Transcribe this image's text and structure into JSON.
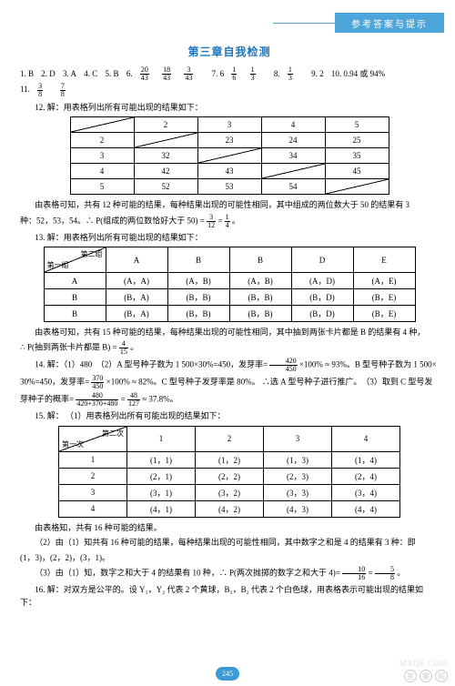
{
  "header": {
    "tab": "参考答案与提示"
  },
  "title": "第三章自我检测",
  "answers": {
    "a1": "1. B",
    "a2": "2. D",
    "a3": "3. A",
    "a4": "4. C",
    "a5": "5. B",
    "a6p": "6.",
    "a6n1": "20",
    "a6d1": "43",
    "a6n2": "18",
    "a6d2": "43",
    "a6n3": "3",
    "a6d3": "43",
    "a7p": "7. 6",
    "a8n": "1",
    "a8d": "6",
    "a9n": "1",
    "a9d": "3",
    "a8p": "8.",
    "a8bn": "1",
    "a8bd": "3",
    "a9p": "9. 2",
    "a10": "10. 0.94 或 94%",
    "a11p": "11.",
    "a11n": "3",
    "a11d": "8",
    "a12n": "7",
    "a12d": "8"
  },
  "q12": {
    "head": "12. 解：用表格列出所有可能出现的结果如下：",
    "table": {
      "r0": [
        "",
        "2",
        "3",
        "4",
        "5"
      ],
      "r1": [
        "2",
        "",
        "23",
        "24",
        "25"
      ],
      "r2": [
        "3",
        "32",
        "",
        "34",
        "35"
      ],
      "r3": [
        "4",
        "42",
        "43",
        "",
        "45"
      ],
      "r4": [
        "5",
        "52",
        "53",
        "54",
        ""
      ]
    },
    "text1": "由表格可知，共有 12 种可能的结果，每种结果出现的可能性相同，其中组成的两位数大于 50 的结果有 3",
    "text2a": "种：52，53，54。∴ P(组成的两位数恰好大于 50) =",
    "f1n": "3",
    "f1d": "12",
    "eq": "=",
    "f2n": "1",
    "f2d": "4",
    "dot": "。"
  },
  "q13": {
    "head": "13. 解：用表格列出所有可能出现的结果如下：",
    "diag_top": "第二组",
    "diag_bot": "第一组",
    "cols": [
      "A",
      "B",
      "B",
      "D",
      "E"
    ],
    "rows": [
      "A",
      "B",
      "B"
    ],
    "cells": [
      [
        "(A，A)",
        "(A，B)",
        "(A，B)",
        "(A，D)",
        "(A，E)"
      ],
      [
        "(B，A)",
        "(B，B)",
        "(B，B)",
        "(B，D)",
        "(B，E)"
      ],
      [
        "(B，A)",
        "(B，B)",
        "(B，B)",
        "(B，D)",
        "(B，E)"
      ]
    ],
    "text1": "由表格可知，共有 15 种可能的结果，每种结果出现的可能性相同，其中抽到两张卡片都是 B 的结果有 4 种，",
    "text2a": "∴ P(抽到两张卡片都是 B) =",
    "fn": "4",
    "fd": "15",
    "dot": "。"
  },
  "q14": {
    "head": "14. 解：（1）480　（2）A 型号种子数为 1 500×30%=450，发芽率=",
    "f1n": "420",
    "f1d": "450",
    "mid1": "×100% ≈ 93%。B 型号种子数为 1 500×",
    "line2a": "30%=450，发芽率=",
    "f2n": "370",
    "f2d": "450",
    "mid2": "×100% ≈ 82%。C 型号种子发芽率是 80%。 ∴选 A 型号种子进行推广。　（3）取到 C 型号发",
    "line3a": "芽种子的概率=",
    "f3n": "480",
    "f3d": "420+370+480",
    "eq": "=",
    "f4n": "48",
    "f4d": "127",
    "tail": "≈ 37.8%。"
  },
  "q15": {
    "head": "15. 解：",
    "sub1": "（1）用表格列出所有可能出现的结果如下：",
    "diag_top": "第二次",
    "diag_bot": "第一次",
    "cols": [
      "1",
      "2",
      "3",
      "4"
    ],
    "rows": [
      "1",
      "2",
      "3",
      "4"
    ],
    "cells": [
      [
        "(1，1)",
        "(1，2)",
        "(1，3)",
        "(1，4)"
      ],
      [
        "(2，1)",
        "(2，2)",
        "(2，3)",
        "(2，4)"
      ],
      [
        "(3，1)",
        "(3，2)",
        "(3，3)",
        "(3，4)"
      ],
      [
        "(4，1)",
        "(4，2)",
        "(4，3)",
        "(4，4)"
      ]
    ],
    "text1": "由表格知，共有 16 种可能的结果。",
    "text2": "（2）由（1）知共有 16 种可能的结果，每种结果出现的可能性相同，其中数字之和是 4 的结果有 3 种：即",
    "text2b": "(1，3)，(2，2)，(3，1)。",
    "text3a": "（3）由（1）知，数字之和大于 4 的结果有 10 种，∴ P(两次抛掷的数字之和大于 4)=",
    "f1n": "10",
    "f1d": "16",
    "eq": "=",
    "f2n": "5",
    "f2d": "8",
    "dot": "。"
  },
  "q16": {
    "text": "16. 解：对双方是公平的。设 Y₁，Y₂ 代表 2 个黄球，B₁，B₂ 代表 2 个白色球，用表格表示可能出现的结果如下："
  },
  "footer": {
    "pagenum": "245",
    "site": "MXQE.COM",
    "wm": "答",
    "wm2": "案",
    "wm3": "网"
  }
}
